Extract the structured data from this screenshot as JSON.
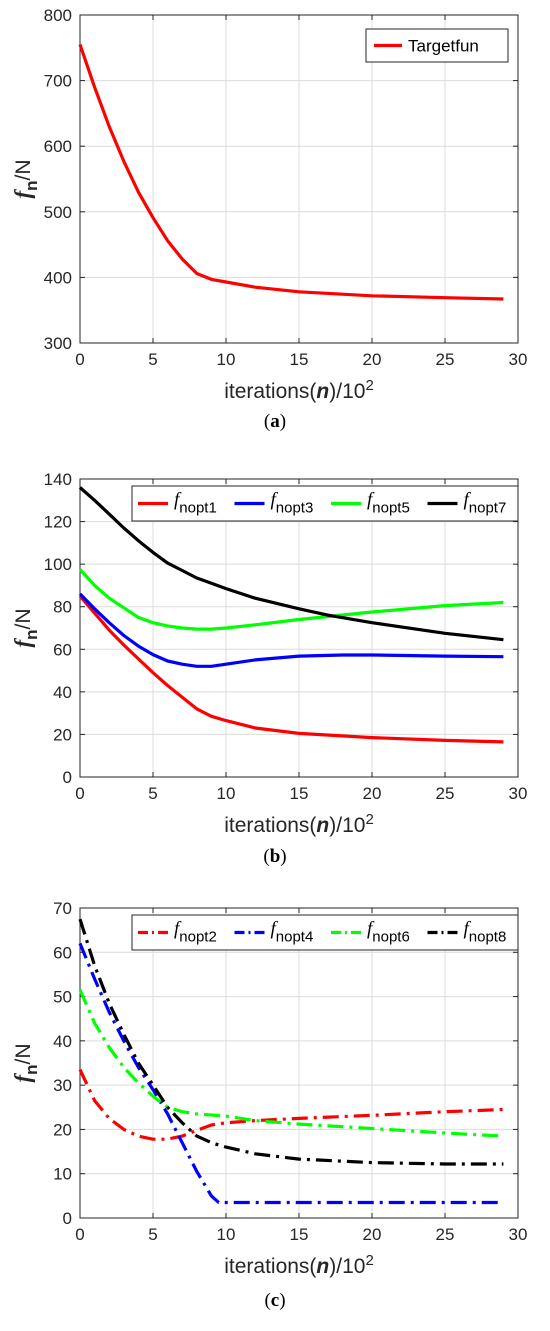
{
  "chart_data": [
    {
      "panel": "a",
      "caption": "(a)",
      "type": "line",
      "xlabel": {
        "pre": "iterations(",
        "var": "n",
        "post": ")/10",
        "sup": "2"
      },
      "ylabel": {
        "var": "f",
        "sub": "n",
        "post": "/N"
      },
      "xlim": [
        0,
        30
      ],
      "ylim": [
        300,
        800
      ],
      "xticks": [
        0,
        5,
        10,
        15,
        20,
        25,
        30
      ],
      "yticks": [
        300,
        400,
        500,
        600,
        700,
        800
      ],
      "grid": true,
      "legend": "top-right",
      "series": [
        {
          "name": "Targetfun",
          "color": "#ff0000",
          "style": "solid",
          "points": [
            [
              0,
              755
            ],
            [
              1,
              690
            ],
            [
              2,
              630
            ],
            [
              3,
              577
            ],
            [
              4,
              530
            ],
            [
              5,
              491
            ],
            [
              6,
              456
            ],
            [
              7,
              428
            ],
            [
              8,
              406
            ],
            [
              9,
              397
            ],
            [
              10,
              393
            ],
            [
              12,
              385
            ],
            [
              15,
              378
            ],
            [
              20,
              372
            ],
            [
              25,
              369
            ],
            [
              29,
              367
            ]
          ]
        }
      ]
    },
    {
      "panel": "b",
      "caption": "(b)",
      "type": "line",
      "xlabel": {
        "pre": "iterations(",
        "var": "n",
        "post": ")/10",
        "sup": "2"
      },
      "ylabel": {
        "var": "f",
        "sub": "n",
        "post": "/N"
      },
      "xlim": [
        0,
        30
      ],
      "ylim": [
        0,
        140
      ],
      "xticks": [
        0,
        5,
        10,
        15,
        20,
        25,
        30
      ],
      "yticks": [
        0,
        20,
        40,
        60,
        80,
        100,
        120,
        140
      ],
      "grid": true,
      "legend": "top",
      "series": [
        {
          "name": "f",
          "name_sub": "nopt1",
          "color": "#ff0000",
          "style": "solid",
          "points": [
            [
              0,
              85
            ],
            [
              1,
              77
            ],
            [
              2,
              69
            ],
            [
              3,
              62
            ],
            [
              4,
              55.5
            ],
            [
              5,
              49
            ],
            [
              6,
              43
            ],
            [
              7,
              37.5
            ],
            [
              8,
              32
            ],
            [
              9,
              28.5
            ],
            [
              10,
              26.5
            ],
            [
              12,
              23
            ],
            [
              15,
              20.5
            ],
            [
              20,
              18.5
            ],
            [
              25,
              17.2
            ],
            [
              29,
              16.5
            ]
          ]
        },
        {
          "name": "f",
          "name_sub": "nopt3",
          "color": "#0000ff",
          "style": "solid",
          "points": [
            [
              0,
              86
            ],
            [
              1,
              79
            ],
            [
              2,
              72.5
            ],
            [
              3,
              66.5
            ],
            [
              4,
              61.5
            ],
            [
              5,
              57.5
            ],
            [
              6,
              54.5
            ],
            [
              7,
              53
            ],
            [
              8,
              52
            ],
            [
              9,
              52
            ],
            [
              10,
              53
            ],
            [
              12,
              55
            ],
            [
              15,
              56.8
            ],
            [
              18,
              57.3
            ],
            [
              20,
              57.3
            ],
            [
              25,
              56.8
            ],
            [
              29,
              56.5
            ]
          ]
        },
        {
          "name": "f",
          "name_sub": "nopt5",
          "color": "#00ff00",
          "style": "solid",
          "points": [
            [
              0,
              97.5
            ],
            [
              1,
              90
            ],
            [
              2,
              84
            ],
            [
              3,
              79.5
            ],
            [
              4,
              75
            ],
            [
              5,
              72.5
            ],
            [
              6,
              71
            ],
            [
              7,
              70
            ],
            [
              8,
              69.5
            ],
            [
              9,
              69.5
            ],
            [
              10,
              70
            ],
            [
              12,
              71.5
            ],
            [
              15,
              74
            ],
            [
              20,
              77.5
            ],
            [
              25,
              80.5
            ],
            [
              29,
              82
            ]
          ]
        },
        {
          "name": "f",
          "name_sub": "nopt7",
          "color": "#000000",
          "style": "solid",
          "points": [
            [
              0,
              136
            ],
            [
              1,
              130
            ],
            [
              2,
              123.5
            ],
            [
              3,
              117
            ],
            [
              4,
              111
            ],
            [
              5,
              105.5
            ],
            [
              6,
              100.5
            ],
            [
              7,
              97
            ],
            [
              8,
              93.5
            ],
            [
              9,
              91
            ],
            [
              10,
              88.5
            ],
            [
              12,
              84
            ],
            [
              15,
              79
            ],
            [
              17,
              76
            ],
            [
              20,
              72.5
            ],
            [
              25,
              67.5
            ],
            [
              29,
              64.5
            ]
          ]
        }
      ]
    },
    {
      "panel": "c",
      "caption": "(c)",
      "type": "line",
      "xlabel": {
        "pre": "iterations(",
        "var": "n",
        "post": ")/10",
        "sup": "2"
      },
      "ylabel": {
        "var": "f",
        "sub": "n",
        "post": "/N"
      },
      "xlim": [
        0,
        30
      ],
      "ylim": [
        0,
        70
      ],
      "xticks": [
        0,
        5,
        10,
        15,
        20,
        25,
        30
      ],
      "yticks": [
        0,
        10,
        20,
        30,
        40,
        50,
        60,
        70
      ],
      "grid": true,
      "legend": "top",
      "series": [
        {
          "name": "f",
          "name_sub": "nopt2",
          "color": "#ff0000",
          "style": "dashdot",
          "points": [
            [
              0,
              33.5
            ],
            [
              1,
              26.5
            ],
            [
              2,
              22.5
            ],
            [
              3,
              20
            ],
            [
              4,
              18.5
            ],
            [
              5,
              17.8
            ],
            [
              6,
              17.8
            ],
            [
              7,
              18.5
            ],
            [
              8,
              19.8
            ],
            [
              9,
              21
            ],
            [
              10,
              21.5
            ],
            [
              12,
              22
            ],
            [
              15,
              22.5
            ],
            [
              20,
              23.2
            ],
            [
              25,
              24
            ],
            [
              29,
              24.5
            ]
          ]
        },
        {
          "name": "f",
          "name_sub": "nopt4",
          "color": "#0000ff",
          "style": "dashdot",
          "points": [
            [
              0,
              62
            ],
            [
              1,
              54
            ],
            [
              2,
              46.5
            ],
            [
              3,
              40
            ],
            [
              4,
              34
            ],
            [
              5,
              29
            ],
            [
              6,
              23.5
            ],
            [
              7,
              17
            ],
            [
              8,
              10.5
            ],
            [
              9,
              5
            ],
            [
              9.5,
              3.5
            ],
            [
              10,
              3.5
            ],
            [
              15,
              3.5
            ],
            [
              20,
              3.5
            ],
            [
              25,
              3.5
            ],
            [
              29,
              3.5
            ]
          ]
        },
        {
          "name": "f",
          "name_sub": "nopt6",
          "color": "#00ff00",
          "style": "dashdot",
          "points": [
            [
              0,
              51.5
            ],
            [
              1,
              44
            ],
            [
              2,
              38.5
            ],
            [
              3,
              34
            ],
            [
              4,
              30.5
            ],
            [
              5,
              27.5
            ],
            [
              6,
              25
            ],
            [
              7,
              24
            ],
            [
              8,
              23.5
            ],
            [
              10,
              23
            ],
            [
              12,
              22
            ],
            [
              15,
              21.2
            ],
            [
              20,
              20.2
            ],
            [
              25,
              19.2
            ],
            [
              29,
              18.5
            ]
          ]
        },
        {
          "name": "f",
          "name_sub": "nopt8",
          "color": "#000000",
          "style": "dashdot",
          "points": [
            [
              0,
              67.5
            ],
            [
              1,
              57
            ],
            [
              2,
              48.5
            ],
            [
              3,
              41.5
            ],
            [
              4,
              35
            ],
            [
              5,
              30
            ],
            [
              6,
              25
            ],
            [
              7,
              21.5
            ],
            [
              8,
              18.5
            ],
            [
              9,
              17
            ],
            [
              10,
              16
            ],
            [
              12,
              14.5
            ],
            [
              15,
              13.3
            ],
            [
              20,
              12.5
            ],
            [
              25,
              12.2
            ],
            [
              29,
              12.2
            ]
          ]
        }
      ]
    }
  ]
}
